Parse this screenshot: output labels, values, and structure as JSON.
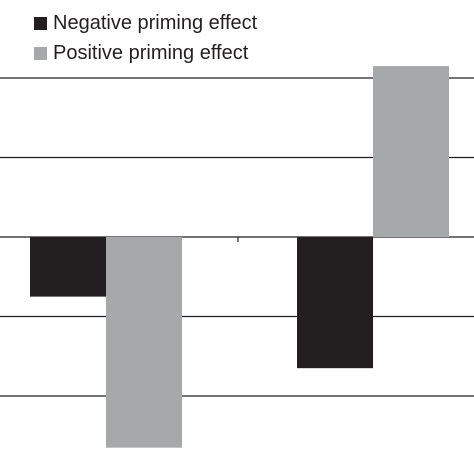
{
  "chart_data": {
    "type": "bar",
    "title": "",
    "xlabel": "",
    "ylabel": "",
    "categories": [
      "",
      ""
    ],
    "series": [
      {
        "name": "Negative priming effect",
        "color": "#231f20",
        "values": [
          -0.75,
          -1.65
        ]
      },
      {
        "name": "Positive priming effect",
        "color": "#a7a8aa",
        "values": [
          -2.65,
          2.15
        ]
      }
    ],
    "ylim": [
      -2.6,
      2.0
    ],
    "gridlines": [
      -2,
      -1,
      0,
      1,
      2
    ],
    "grid": true,
    "legend_position": "top-left"
  }
}
